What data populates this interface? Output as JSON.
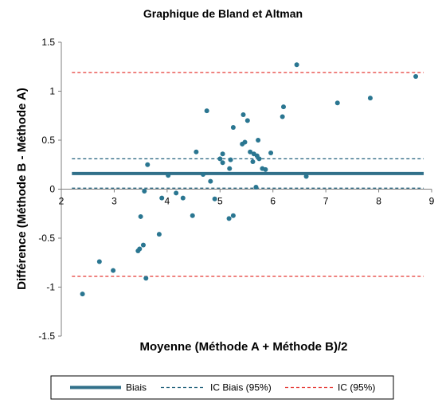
{
  "chart_data": {
    "type": "scatter",
    "title": "Graphique de Bland et Altman",
    "xlabel": "Moyenne (Méthode A + Méthode B)/2",
    "ylabel": "Différence (Méthode B - Méthode A)",
    "xlim": [
      2,
      9
    ],
    "ylim": [
      -1.5,
      1.5
    ],
    "xticks": [
      "2",
      "3",
      "4",
      "5",
      "6",
      "7",
      "8",
      "9"
    ],
    "yticks": [
      "-1.5",
      "-1",
      "-0.5",
      "0",
      "0.5",
      "1",
      "1.5"
    ],
    "grid": false,
    "legend_position": "bottom",
    "points": [
      {
        "x": 2.4,
        "y": -1.07
      },
      {
        "x": 2.72,
        "y": -0.74
      },
      {
        "x": 2.98,
        "y": -0.83
      },
      {
        "x": 3.45,
        "y": -0.63
      },
      {
        "x": 3.48,
        "y": -0.61
      },
      {
        "x": 3.5,
        "y": -0.28
      },
      {
        "x": 3.55,
        "y": -0.57
      },
      {
        "x": 3.57,
        "y": -0.02
      },
      {
        "x": 3.6,
        "y": -0.91
      },
      {
        "x": 3.63,
        "y": 0.25
      },
      {
        "x": 3.85,
        "y": -0.46
      },
      {
        "x": 3.9,
        "y": -0.09
      },
      {
        "x": 4.02,
        "y": 0.14
      },
      {
        "x": 4.17,
        "y": -0.04
      },
      {
        "x": 4.3,
        "y": -0.09
      },
      {
        "x": 4.48,
        "y": -0.27
      },
      {
        "x": 4.55,
        "y": 0.38
      },
      {
        "x": 4.68,
        "y": 0.15
      },
      {
        "x": 4.75,
        "y": 0.8
      },
      {
        "x": 4.82,
        "y": 0.08
      },
      {
        "x": 4.9,
        "y": -0.1
      },
      {
        "x": 5.0,
        "y": 0.31
      },
      {
        "x": 5.05,
        "y": 0.27
      },
      {
        "x": 5.05,
        "y": 0.36
      },
      {
        "x": 5.17,
        "y": -0.3
      },
      {
        "x": 5.18,
        "y": 0.21
      },
      {
        "x": 5.2,
        "y": 0.3
      },
      {
        "x": 5.25,
        "y": -0.27
      },
      {
        "x": 5.25,
        "y": 0.63
      },
      {
        "x": 5.42,
        "y": 0.46
      },
      {
        "x": 5.44,
        "y": 0.76
      },
      {
        "x": 5.47,
        "y": 0.48
      },
      {
        "x": 5.52,
        "y": 0.7
      },
      {
        "x": 5.57,
        "y": 0.38
      },
      {
        "x": 5.62,
        "y": 0.28
      },
      {
        "x": 5.64,
        "y": 0.36
      },
      {
        "x": 5.68,
        "y": 0.02
      },
      {
        "x": 5.7,
        "y": 0.34
      },
      {
        "x": 5.72,
        "y": 0.5
      },
      {
        "x": 5.74,
        "y": 0.31
      },
      {
        "x": 5.8,
        "y": 0.21
      },
      {
        "x": 5.86,
        "y": 0.2
      },
      {
        "x": 5.96,
        "y": 0.37
      },
      {
        "x": 6.18,
        "y": 0.74
      },
      {
        "x": 6.2,
        "y": 0.84
      },
      {
        "x": 6.45,
        "y": 1.27
      },
      {
        "x": 6.63,
        "y": 0.13
      },
      {
        "x": 7.22,
        "y": 0.88
      },
      {
        "x": 7.84,
        "y": 0.93
      },
      {
        "x": 8.7,
        "y": 1.15
      }
    ],
    "series": [
      {
        "name": "Biais",
        "value": 0.16,
        "style": "solid-thick",
        "color": "#31708a"
      },
      {
        "name": "IC Biais (95%)",
        "values": [
          0.01,
          0.31
        ],
        "style": "dashed",
        "color": "#1f5f7a"
      },
      {
        "name": "IC (95%)",
        "values": [
          -0.89,
          1.19
        ],
        "style": "dashed",
        "color": "#e53935"
      }
    ],
    "point_color": "#2a7691"
  }
}
